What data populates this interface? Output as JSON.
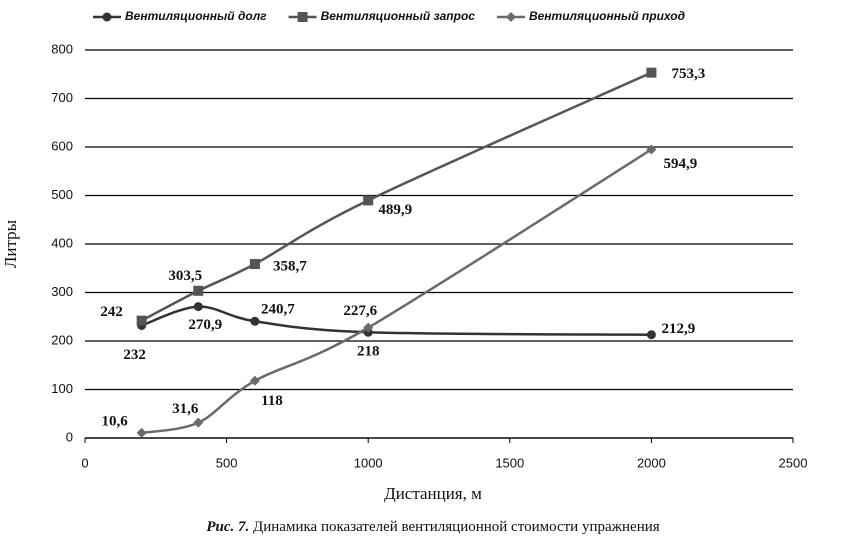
{
  "chart_data": {
    "type": "line",
    "x_label": "Дистанция, м",
    "y_label": "Литры",
    "caption_label": "Рис. 7.",
    "caption": "Динамика показателей вентиляционной стоимости упражнения",
    "x": [
      200,
      400,
      600,
      1000,
      2000
    ],
    "series": [
      {
        "name": "Вентиляционный долг",
        "color": "#333333",
        "marker": "circle",
        "values": [
          232,
          270.9,
          240.7,
          218,
          212.9
        ],
        "value_labels": [
          "232",
          "270,9",
          "240,7",
          "218",
          "212,9"
        ]
      },
      {
        "name": "Вентиляционный запрос",
        "color": "#555555",
        "marker": "square",
        "values": [
          242,
          303.5,
          358.7,
          489.9,
          753.3
        ],
        "value_labels": [
          "242",
          "303,5",
          "358,7",
          "489,9",
          "753,3"
        ]
      },
      {
        "name": "Вентиляционный приход",
        "color": "#6a6a6a",
        "marker": "diamond",
        "values": [
          10.6,
          31.6,
          118,
          227.6,
          594.9
        ],
        "value_labels": [
          "10,6",
          "31,6",
          "118",
          "227,6",
          "594,9"
        ]
      }
    ],
    "xlim": [
      0,
      2500
    ],
    "xticks": [
      0,
      500,
      1000,
      1500,
      2000,
      2500
    ],
    "ylim": [
      0,
      800
    ],
    "yticks": [
      0,
      100,
      200,
      300,
      400,
      500,
      600,
      700,
      800
    ],
    "grid": true,
    "legend": "top"
  }
}
